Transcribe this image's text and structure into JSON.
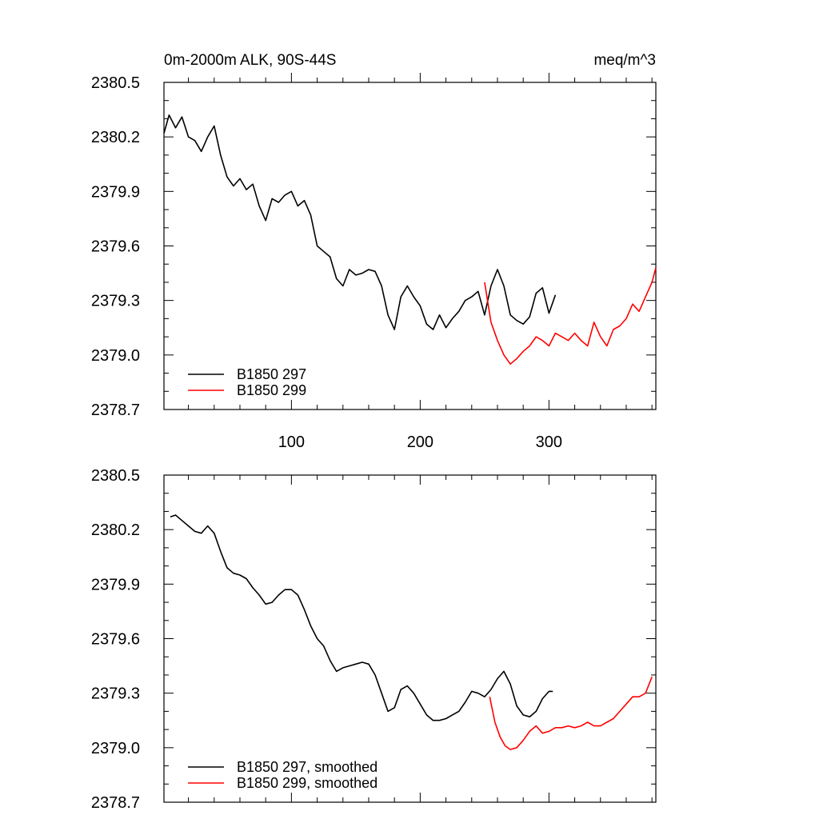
{
  "chart_data": [
    {
      "type": "line",
      "title": "0m-2000m ALK, 90S-44S",
      "units_label": "meq/m^3",
      "xlim": [
        1,
        383
      ],
      "ylim": [
        2378.7,
        2380.5
      ],
      "xticks": [
        100,
        200,
        300
      ],
      "xtick_labels": [
        "100",
        "200",
        "300"
      ],
      "yticks": [
        2378.7,
        2379.0,
        2379.3,
        2379.6,
        2379.9,
        2380.2,
        2380.5
      ],
      "ytick_labels": [
        "2378.7",
        "2379.0",
        "2379.3",
        "2379.6",
        "2379.9",
        "2380.2",
        "2380.5"
      ],
      "grid": false,
      "legend_position": "bottom-left",
      "series": [
        {
          "name": "B1850 297",
          "color": "#000000",
          "x": [
            1,
            5,
            10,
            15,
            20,
            25,
            30,
            35,
            40,
            45,
            50,
            55,
            60,
            65,
            70,
            75,
            80,
            85,
            90,
            95,
            100,
            105,
            110,
            115,
            120,
            125,
            130,
            135,
            140,
            145,
            150,
            155,
            160,
            165,
            170,
            175,
            180,
            185,
            190,
            195,
            200,
            205,
            210,
            215,
            220,
            225,
            230,
            235,
            240,
            245,
            250,
            255,
            260,
            265,
            270,
            275,
            280,
            285,
            290,
            295,
            300,
            305
          ],
          "y": [
            2380.22,
            2380.32,
            2380.25,
            2380.31,
            2380.2,
            2380.18,
            2380.12,
            2380.2,
            2380.26,
            2380.1,
            2379.98,
            2379.93,
            2379.97,
            2379.91,
            2379.94,
            2379.82,
            2379.74,
            2379.86,
            2379.84,
            2379.88,
            2379.9,
            2379.82,
            2379.85,
            2379.77,
            2379.6,
            2379.57,
            2379.54,
            2379.42,
            2379.38,
            2379.47,
            2379.44,
            2379.45,
            2379.47,
            2379.46,
            2379.38,
            2379.22,
            2379.14,
            2379.32,
            2379.38,
            2379.32,
            2379.27,
            2379.17,
            2379.14,
            2379.22,
            2379.15,
            2379.2,
            2379.24,
            2379.3,
            2379.32,
            2379.35,
            2379.22,
            2379.38,
            2379.47,
            2379.38,
            2379.22,
            2379.19,
            2379.17,
            2379.21,
            2379.34,
            2379.37,
            2379.23,
            2379.33
          ]
        },
        {
          "name": "B1850 299",
          "color": "#ff0000",
          "x": [
            250,
            255,
            260,
            265,
            270,
            275,
            280,
            285,
            290,
            295,
            300,
            305,
            310,
            315,
            320,
            325,
            330,
            335,
            340,
            345,
            350,
            355,
            360,
            365,
            370,
            375,
            380,
            383
          ],
          "y": [
            2379.4,
            2379.18,
            2379.08,
            2379.0,
            2378.95,
            2378.98,
            2379.02,
            2379.05,
            2379.1,
            2379.08,
            2379.05,
            2379.12,
            2379.1,
            2379.08,
            2379.12,
            2379.08,
            2379.05,
            2379.18,
            2379.1,
            2379.05,
            2379.14,
            2379.16,
            2379.2,
            2379.28,
            2379.24,
            2379.32,
            2379.4,
            2379.48
          ]
        }
      ]
    },
    {
      "type": "line",
      "title": "",
      "xlim": [
        1,
        383
      ],
      "ylim": [
        2378.7,
        2380.5
      ],
      "xticks": [
        100,
        200,
        300
      ],
      "yticks": [
        2378.7,
        2379.0,
        2379.3,
        2379.6,
        2379.9,
        2380.2,
        2380.5
      ],
      "ytick_labels": [
        "2378.7",
        "2379.0",
        "2379.3",
        "2379.6",
        "2379.9",
        "2380.2",
        "2380.5"
      ],
      "grid": false,
      "legend_position": "bottom-left",
      "series": [
        {
          "name": "B1850 297, smoothed",
          "color": "#000000",
          "x": [
            6,
            10,
            15,
            20,
            25,
            30,
            35,
            40,
            45,
            50,
            55,
            60,
            65,
            70,
            75,
            80,
            85,
            90,
            95,
            100,
            105,
            110,
            115,
            120,
            125,
            130,
            135,
            140,
            145,
            150,
            155,
            160,
            165,
            170,
            175,
            180,
            185,
            190,
            195,
            200,
            205,
            210,
            215,
            220,
            225,
            230,
            235,
            240,
            245,
            250,
            255,
            260,
            265,
            270,
            275,
            280,
            285,
            290,
            295,
            300,
            303
          ],
          "y": [
            2380.27,
            2380.28,
            2380.25,
            2380.22,
            2380.19,
            2380.18,
            2380.22,
            2380.18,
            2380.08,
            2379.99,
            2379.96,
            2379.95,
            2379.93,
            2379.88,
            2379.84,
            2379.79,
            2379.8,
            2379.84,
            2379.87,
            2379.87,
            2379.84,
            2379.76,
            2379.67,
            2379.6,
            2379.56,
            2379.48,
            2379.42,
            2379.44,
            2379.45,
            2379.46,
            2379.47,
            2379.46,
            2379.4,
            2379.3,
            2379.2,
            2379.22,
            2379.32,
            2379.34,
            2379.3,
            2379.24,
            2379.18,
            2379.15,
            2379.15,
            2379.16,
            2379.18,
            2379.2,
            2379.25,
            2379.31,
            2379.3,
            2379.28,
            2379.32,
            2379.38,
            2379.42,
            2379.35,
            2379.23,
            2379.18,
            2379.17,
            2379.2,
            2379.27,
            2379.31,
            2379.31
          ]
        },
        {
          "name": "B1850 299, smoothed",
          "color": "#ff0000",
          "x": [
            254,
            258,
            262,
            266,
            270,
            275,
            280,
            285,
            290,
            295,
            300,
            305,
            310,
            315,
            320,
            325,
            330,
            335,
            340,
            345,
            350,
            355,
            360,
            365,
            370,
            375,
            380
          ],
          "y": [
            2379.28,
            2379.14,
            2379.06,
            2379.01,
            2378.99,
            2379.0,
            2379.04,
            2379.09,
            2379.12,
            2379.08,
            2379.09,
            2379.11,
            2379.11,
            2379.12,
            2379.11,
            2379.12,
            2379.14,
            2379.12,
            2379.12,
            2379.14,
            2379.16,
            2379.2,
            2379.24,
            2379.28,
            2379.28,
            2379.3,
            2379.39
          ]
        }
      ]
    }
  ]
}
